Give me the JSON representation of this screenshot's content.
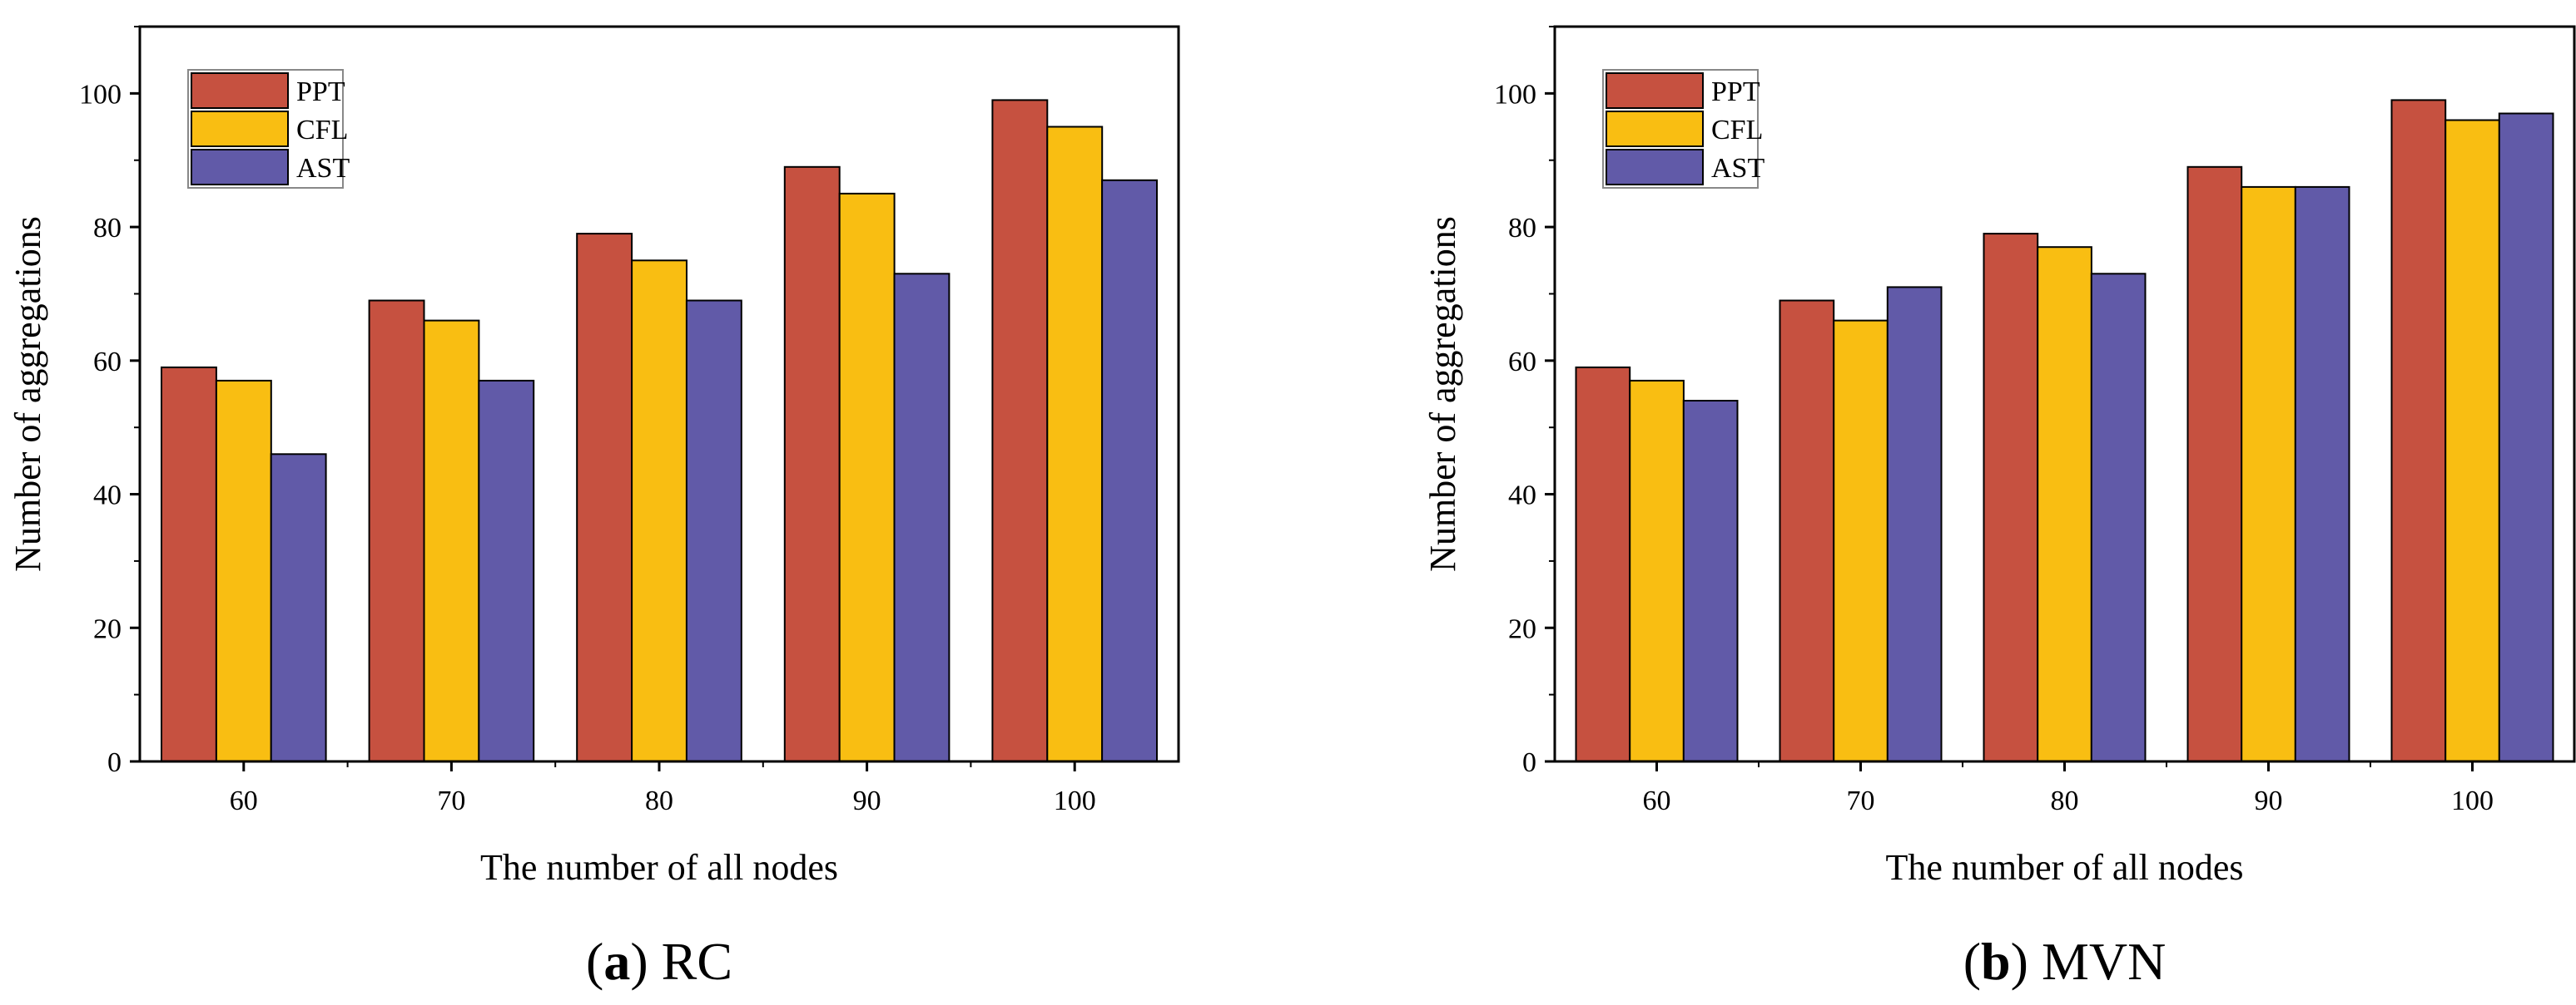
{
  "colors": {
    "PPT": "#C65140",
    "CFL": "#F9BE12",
    "AST": "#615AA8",
    "axis": "#000000"
  },
  "chart_data": [
    {
      "type": "bar",
      "caption_letter": "a",
      "caption_title": "RC",
      "xlabel": "The number of all nodes",
      "ylabel": "Number of aggregations",
      "categories": [
        "60",
        "70",
        "80",
        "90",
        "100"
      ],
      "ylim": [
        0,
        110
      ],
      "yticks": [
        "0",
        "20",
        "40",
        "60",
        "80",
        "100"
      ],
      "legend_position": "top-left",
      "series": [
        {
          "name": "PPT",
          "values": [
            59,
            69,
            79,
            89,
            99
          ]
        },
        {
          "name": "CFL",
          "values": [
            57,
            66,
            75,
            85,
            95
          ]
        },
        {
          "name": "AST",
          "values": [
            46,
            57,
            69,
            73,
            87
          ]
        }
      ]
    },
    {
      "type": "bar",
      "caption_letter": "b",
      "caption_title": "MVN",
      "xlabel": "The number of all nodes",
      "ylabel": "Number of aggregations",
      "categories": [
        "60",
        "70",
        "80",
        "90",
        "100"
      ],
      "ylim": [
        0,
        110
      ],
      "yticks": [
        "0",
        "20",
        "40",
        "60",
        "80",
        "100"
      ],
      "legend_position": "top-left",
      "series": [
        {
          "name": "PPT",
          "values": [
            59,
            69,
            79,
            89,
            99
          ]
        },
        {
          "name": "CFL",
          "values": [
            57,
            66,
            77,
            86,
            96
          ]
        },
        {
          "name": "AST",
          "values": [
            54,
            71,
            73,
            86,
            97
          ]
        }
      ]
    }
  ]
}
